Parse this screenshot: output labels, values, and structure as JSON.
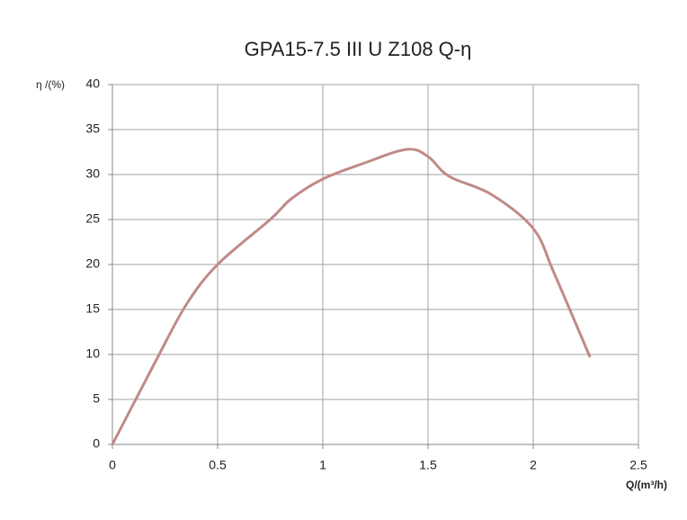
{
  "chart_data": {
    "type": "line",
    "title": "GPA15-7.5 III U Z108 Q-η",
    "x_label": "Q/(m³/h)",
    "y_label": "η /(%)",
    "x": [
      0,
      0.2,
      0.35,
      0.5,
      0.75,
      0.85,
      1.0,
      1.2,
      1.4,
      1.5,
      1.6,
      1.8,
      2.0,
      2.1,
      2.27
    ],
    "series": [
      {
        "name": "Q-η",
        "color": "#c08a88",
        "values": [
          0,
          9,
          15.5,
          20,
          25,
          27.3,
          29.5,
          31.3,
          32.8,
          32,
          29.8,
          27.8,
          24,
          19,
          9.7
        ]
      }
    ],
    "xlim": [
      0,
      2.5
    ],
    "xticks": [
      0,
      0.5,
      1,
      1.5,
      2,
      2.5
    ],
    "ylim": [
      0,
      40
    ],
    "yticks": [
      0,
      5,
      10,
      15,
      20,
      25,
      30,
      35,
      40
    ],
    "grid": true,
    "legend": false
  }
}
